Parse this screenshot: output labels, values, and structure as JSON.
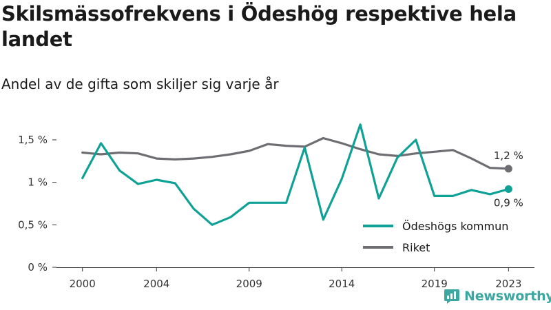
{
  "title": "Skilsmässofrekvens i Ödeshög respektive hela landet",
  "subtitle": "Andel av de gifta som skiljer sig varje år",
  "brand": {
    "name": "Newsworthy",
    "icon": "newsworthy-logo-icon"
  },
  "colors": {
    "odeshog": "#0fa195",
    "riket": "#6e6e72",
    "axis": "#333333",
    "grid": "#dddddd"
  },
  "chart_data": {
    "type": "line",
    "x": [
      2000,
      2001,
      2002,
      2003,
      2004,
      2005,
      2006,
      2007,
      2008,
      2009,
      2010,
      2011,
      2012,
      2013,
      2014,
      2015,
      2016,
      2017,
      2018,
      2019,
      2020,
      2021,
      2022,
      2023
    ],
    "x_ticks": [
      2000,
      2004,
      2009,
      2014,
      2019,
      2023
    ],
    "x_tick_labels": [
      "2000",
      "2004",
      "2009",
      "2014",
      "2019",
      "2023"
    ],
    "xlim": [
      1998.6,
      2024.4
    ],
    "ylim": [
      0,
      1.5
    ],
    "y_ticks": [
      0,
      0.5,
      1,
      1.5
    ],
    "y_tick_labels": [
      "0 %",
      "0,5 %",
      "1 %",
      "1,5 %"
    ],
    "series": [
      {
        "name": "Ödeshögs kommun",
        "color_key": "odeshog",
        "values": [
          1.05,
          1.46,
          1.14,
          0.98,
          1.03,
          0.99,
          0.69,
          0.5,
          0.59,
          0.76,
          0.76,
          0.76,
          1.41,
          0.56,
          1.04,
          1.68,
          0.81,
          1.29,
          1.5,
          0.84,
          0.84,
          0.91,
          0.86,
          0.92
        ],
        "end_label": "0,9 %"
      },
      {
        "name": "Riket",
        "color_key": "riket",
        "values": [
          1.35,
          1.33,
          1.35,
          1.34,
          1.28,
          1.27,
          1.28,
          1.3,
          1.33,
          1.37,
          1.45,
          1.43,
          1.42,
          1.52,
          1.46,
          1.39,
          1.33,
          1.31,
          1.34,
          1.36,
          1.38,
          1.28,
          1.17,
          1.16
        ],
        "end_label": "1,2 %"
      }
    ],
    "legend_position": "bottom-right",
    "grid": false
  }
}
